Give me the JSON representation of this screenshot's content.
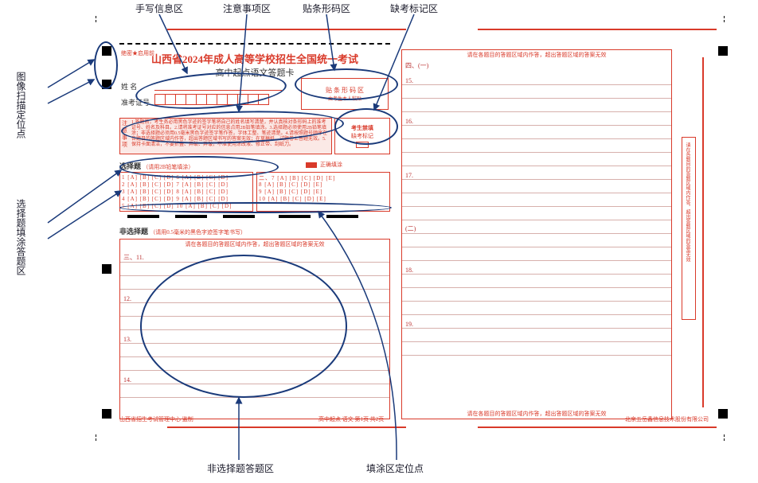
{
  "colors": {
    "red": "#d93a2a",
    "blue": "#1a3a7a",
    "lineRed": "#d7b0ac",
    "noticeBg": "#fbe9e6"
  },
  "labels": {
    "handwrite": "手写信息区",
    "notice": "注意事项区",
    "barcode": "贴条形码区",
    "absent": "缺考标记区",
    "scanDots": "图像扫描定位点",
    "selectFill": "选择题填涂答题区",
    "nonSelect": "非选择题答题区",
    "fillDots": "填涂区定位点"
  },
  "sheet": {
    "header_tiny": "绝密★启用前",
    "title": "山西省2024年成人高等学校招生全国统一考试",
    "subtitle": "高中起点语文答题卡",
    "name_label": "姓    名",
    "exam_no_label": "准考证号",
    "exam_no_cells": 11,
    "barcode_label": "贴 条 形 码 区",
    "barcode_sub": "由考生本人粘贴",
    "absent_label": "考生禁填",
    "absent_sub": "缺考标记",
    "notice_label": "注意事项",
    "notice_text": "1.答题前，考生务必用黑色字迹的签字笔将自己的姓名填写清楚，并认真核对条形码上的准考证号、姓名及科目。2.请将准考证号对应的信息点用2B铅笔填涂。3.选择题必须使用2B铅笔填涂；非选择题必须用0.5毫米黑色字迹签字笔作答，字体工整、笔迹清楚。4.请按照题号顺序在各题目的答题区域内作答，超出答题区域书写的答案无效；在草稿纸、试题卷上答题无效。5.保持卡面清洁，不要折叠、弄破、弄皱，不准使用涂改液、修正带、刮纸刀。",
    "select_title": "选择题",
    "select_sub": "（请用2B铅笔填涂）",
    "select_correct": "正确填涂",
    "select_rows_left": [
      "1  [A] [B] [C] [D]    6  [A] [B] [C] [D]",
      "2  [A] [B] [C] [D]    7  [A] [B] [C] [D]",
      "3  [A] [B] [C] [D]    8  [A] [B] [C] [D]",
      "4  [A] [B] [C] [D]    9  [A] [B] [C] [D]",
      "5  [A] [B] [C] [D]   10  [A] [B] [C] [D]"
    ],
    "select_rows_right": [
      "二、7  [A] [B] [C] [D] [E]",
      "    8  [A] [B] [C] [D] [E]",
      "    9  [A] [B] [C] [D] [E]",
      "   10  [A] [B] [C] [D] [E]",
      ""
    ],
    "nonselect_title": "非选择题",
    "nonselect_sub": "（请用0.5毫米的黑色字迹签字笔书写）",
    "q_left": [
      "三、11.",
      "",
      "",
      "12.",
      "",
      "",
      "13.",
      "",
      "",
      "14.",
      ""
    ],
    "right_header": "四、(一)",
    "q_right": [
      "15.",
      "",
      "",
      "16.",
      "",
      "",
      "",
      "17.",
      "",
      "",
      "",
      "(二)",
      "",
      "",
      "18.",
      "",
      "",
      "",
      "19.",
      "",
      ""
    ],
    "side_warn": "请在各题目的答题区域内作答，超出答题区域的答案无效",
    "footer_left": "山西省招生考试管理中心 监制",
    "footer_center": "高中起点 语文    第1页 共2页",
    "footer_right": "北京五岳鑫信息技术股份有限公司"
  }
}
